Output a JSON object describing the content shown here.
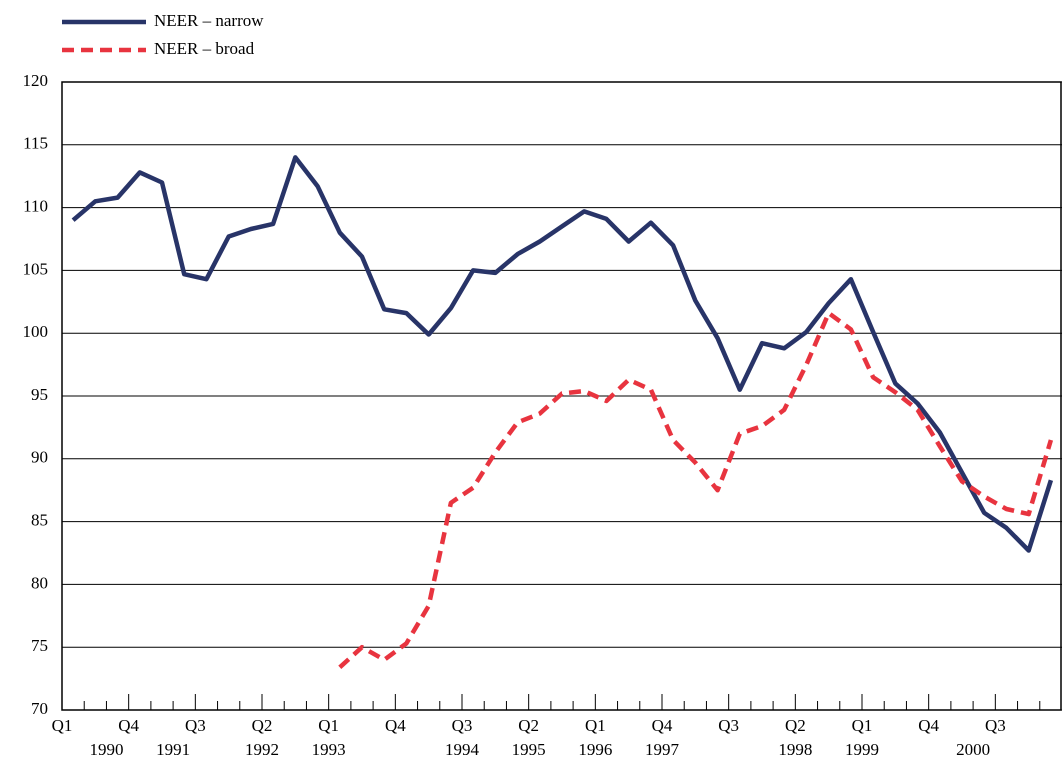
{
  "chart_data": {
    "type": "line",
    "categories": [
      "Q1",
      null,
      null,
      "Q4",
      null,
      null,
      "Q3",
      null,
      null,
      "Q2",
      null,
      null,
      "Q1",
      null,
      null,
      "Q4",
      null,
      null,
      "Q3",
      null,
      null,
      "Q2",
      null,
      null,
      "Q1",
      null,
      null,
      "Q4",
      null,
      null,
      "Q3",
      null,
      null,
      "Q2",
      null,
      null,
      "Q1",
      null,
      null,
      "Q4",
      null,
      null,
      "Q3",
      null,
      null
    ],
    "year_labels": [
      null,
      null,
      "1990",
      null,
      null,
      "1991",
      null,
      null,
      null,
      "1992",
      null,
      null,
      "1993",
      null,
      null,
      null,
      null,
      null,
      "1994",
      null,
      null,
      "1995",
      null,
      null,
      "1996",
      null,
      null,
      "1997",
      null,
      null,
      null,
      null,
      null,
      "1998",
      null,
      null,
      "1999",
      null,
      null,
      null,
      null,
      "2000",
      null,
      null,
      null
    ],
    "series": [
      {
        "name": "NEER – narrow",
        "color": "#283468",
        "dash": false,
        "values": [
          109.0,
          110.5,
          110.8,
          112.8,
          112.0,
          104.7,
          104.3,
          107.7,
          108.3,
          108.7,
          114.0,
          111.7,
          108.0,
          106.1,
          101.9,
          101.6,
          99.9,
          102.0,
          105.0,
          104.8,
          106.3,
          107.3,
          108.5,
          109.7,
          109.1,
          107.3,
          108.8,
          107.0,
          102.6,
          99.6,
          95.5,
          99.2,
          98.8,
          100.1,
          102.4,
          104.3,
          100.1,
          96.0,
          94.4,
          92.1,
          88.9,
          85.7,
          84.5,
          82.7,
          88.3
        ]
      },
      {
        "name": "NEER – broad",
        "color": "#e8343f",
        "dash": true,
        "values": [
          null,
          null,
          null,
          null,
          null,
          null,
          null,
          null,
          null,
          null,
          null,
          null,
          73.4,
          75.0,
          74.0,
          75.3,
          78.3,
          86.5,
          87.7,
          90.5,
          92.9,
          93.6,
          95.2,
          95.4,
          94.6,
          96.3,
          95.5,
          91.5,
          89.7,
          87.5,
          92.0,
          92.6,
          93.9,
          97.5,
          101.6,
          100.3,
          96.5,
          95.3,
          93.9,
          91.0,
          88.2,
          87.0,
          86.0,
          85.6,
          91.5
        ]
      }
    ],
    "ylim": [
      70,
      120
    ],
    "yticks": [
      70,
      75,
      80,
      85,
      90,
      95,
      100,
      105,
      110,
      115,
      120
    ],
    "grid": true,
    "legend": "top-left"
  }
}
